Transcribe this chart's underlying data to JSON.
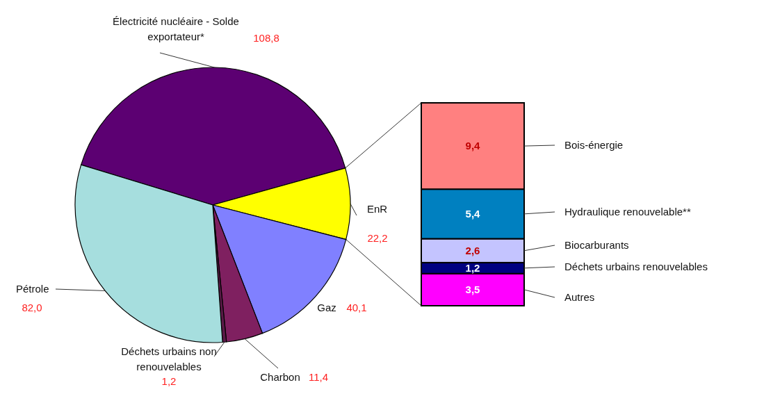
{
  "chart_data": [
    {
      "type": "pie",
      "categories": [
        "Électricité nucléaire - Solde exportateur*",
        "EnR",
        "Gaz",
        "Charbon",
        "Déchets urbains non renouvelables",
        "Pétrole"
      ],
      "values": [
        108.8,
        22.2,
        40.1,
        11.4,
        1.2,
        82.0
      ],
      "value_labels": [
        "108,8",
        "22,2",
        "40,1",
        "11,4",
        "1,2",
        "82,0"
      ],
      "colors": [
        "#5c0072",
        "#ffff00",
        "#8080ff",
        "#7f2060",
        "#5a1a48",
        "#a6dede"
      ]
    },
    {
      "type": "bar",
      "stacked": true,
      "categories": [
        null
      ],
      "series": [
        {
          "name": "Autres",
          "color": "#ff00ff",
          "values": [
            3.5
          ],
          "value_labels": [
            "3,5"
          ]
        },
        {
          "name": "Déchets urbains renouvelables",
          "color": "#000080",
          "values": [
            1.2
          ],
          "value_labels": [
            "1,2"
          ]
        },
        {
          "name": "Biocarburants",
          "color": "#c4c4ff",
          "values": [
            2.6
          ],
          "value_labels": [
            "2,6"
          ]
        },
        {
          "name": "Hydraulique renouvelable**",
          "color": "#0080c0",
          "values": [
            5.4
          ],
          "value_labels": [
            "5,4"
          ]
        },
        {
          "name": "Bois-énergie",
          "color": "#ff8080",
          "values": [
            9.4
          ],
          "value_labels": [
            "9,4"
          ]
        }
      ]
    }
  ]
}
